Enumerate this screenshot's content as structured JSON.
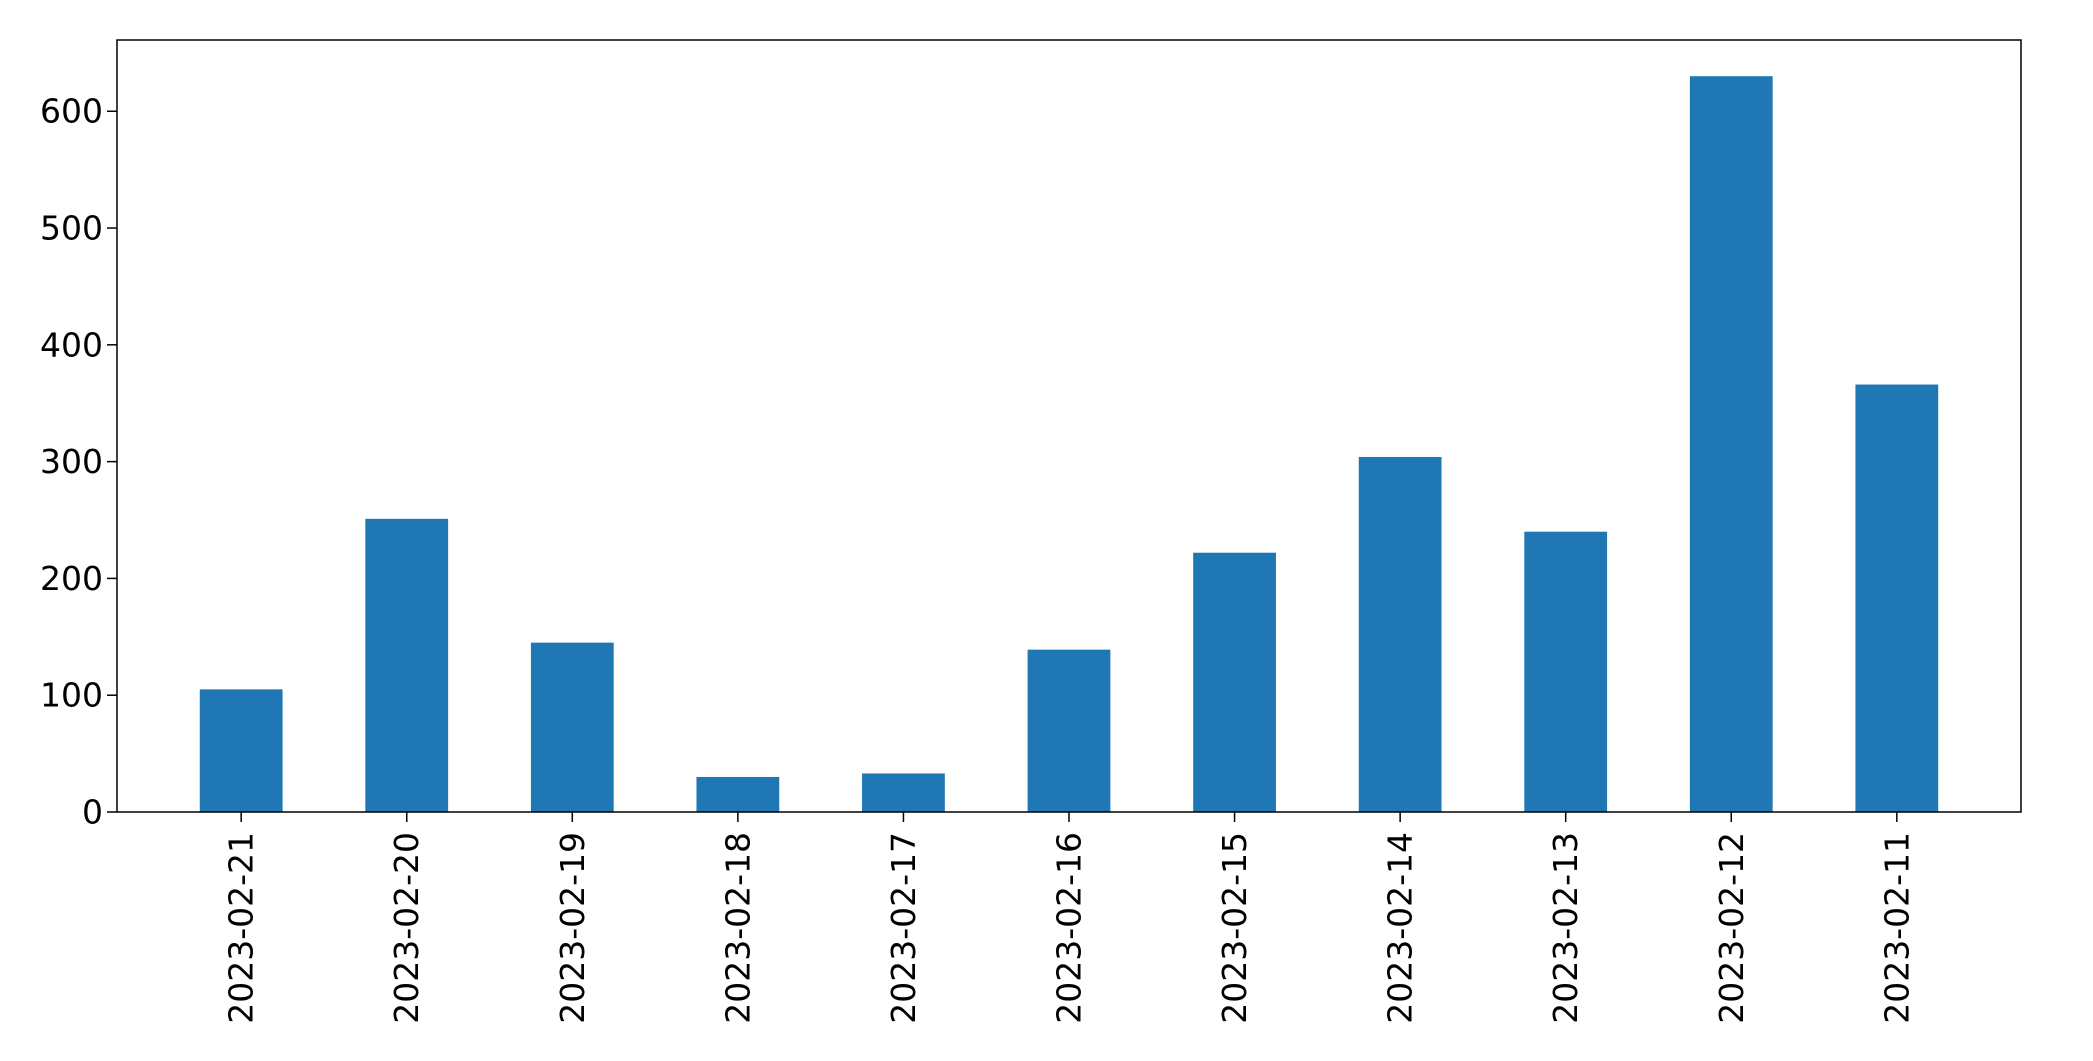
{
  "chart_data": {
    "type": "bar",
    "title": "",
    "xlabel": "",
    "ylabel": "",
    "categories": [
      "2023-02-21",
      "2023-02-20",
      "2023-02-19",
      "2023-02-18",
      "2023-02-17",
      "2023-02-16",
      "2023-02-15",
      "2023-02-14",
      "2023-02-13",
      "2023-02-12",
      "2023-02-11"
    ],
    "values": [
      105,
      251,
      145,
      30,
      33,
      139,
      222,
      304,
      240,
      630,
      366
    ],
    "ylim": [
      0,
      661
    ],
    "yticks": [
      0,
      100,
      200,
      300,
      400,
      500,
      600
    ],
    "ytick_labels": [
      "0",
      "100",
      "200",
      "300",
      "400",
      "500",
      "600"
    ],
    "grid": false,
    "legend": "none",
    "bar_color": "#1f77b4",
    "axis_color": "#000000"
  }
}
